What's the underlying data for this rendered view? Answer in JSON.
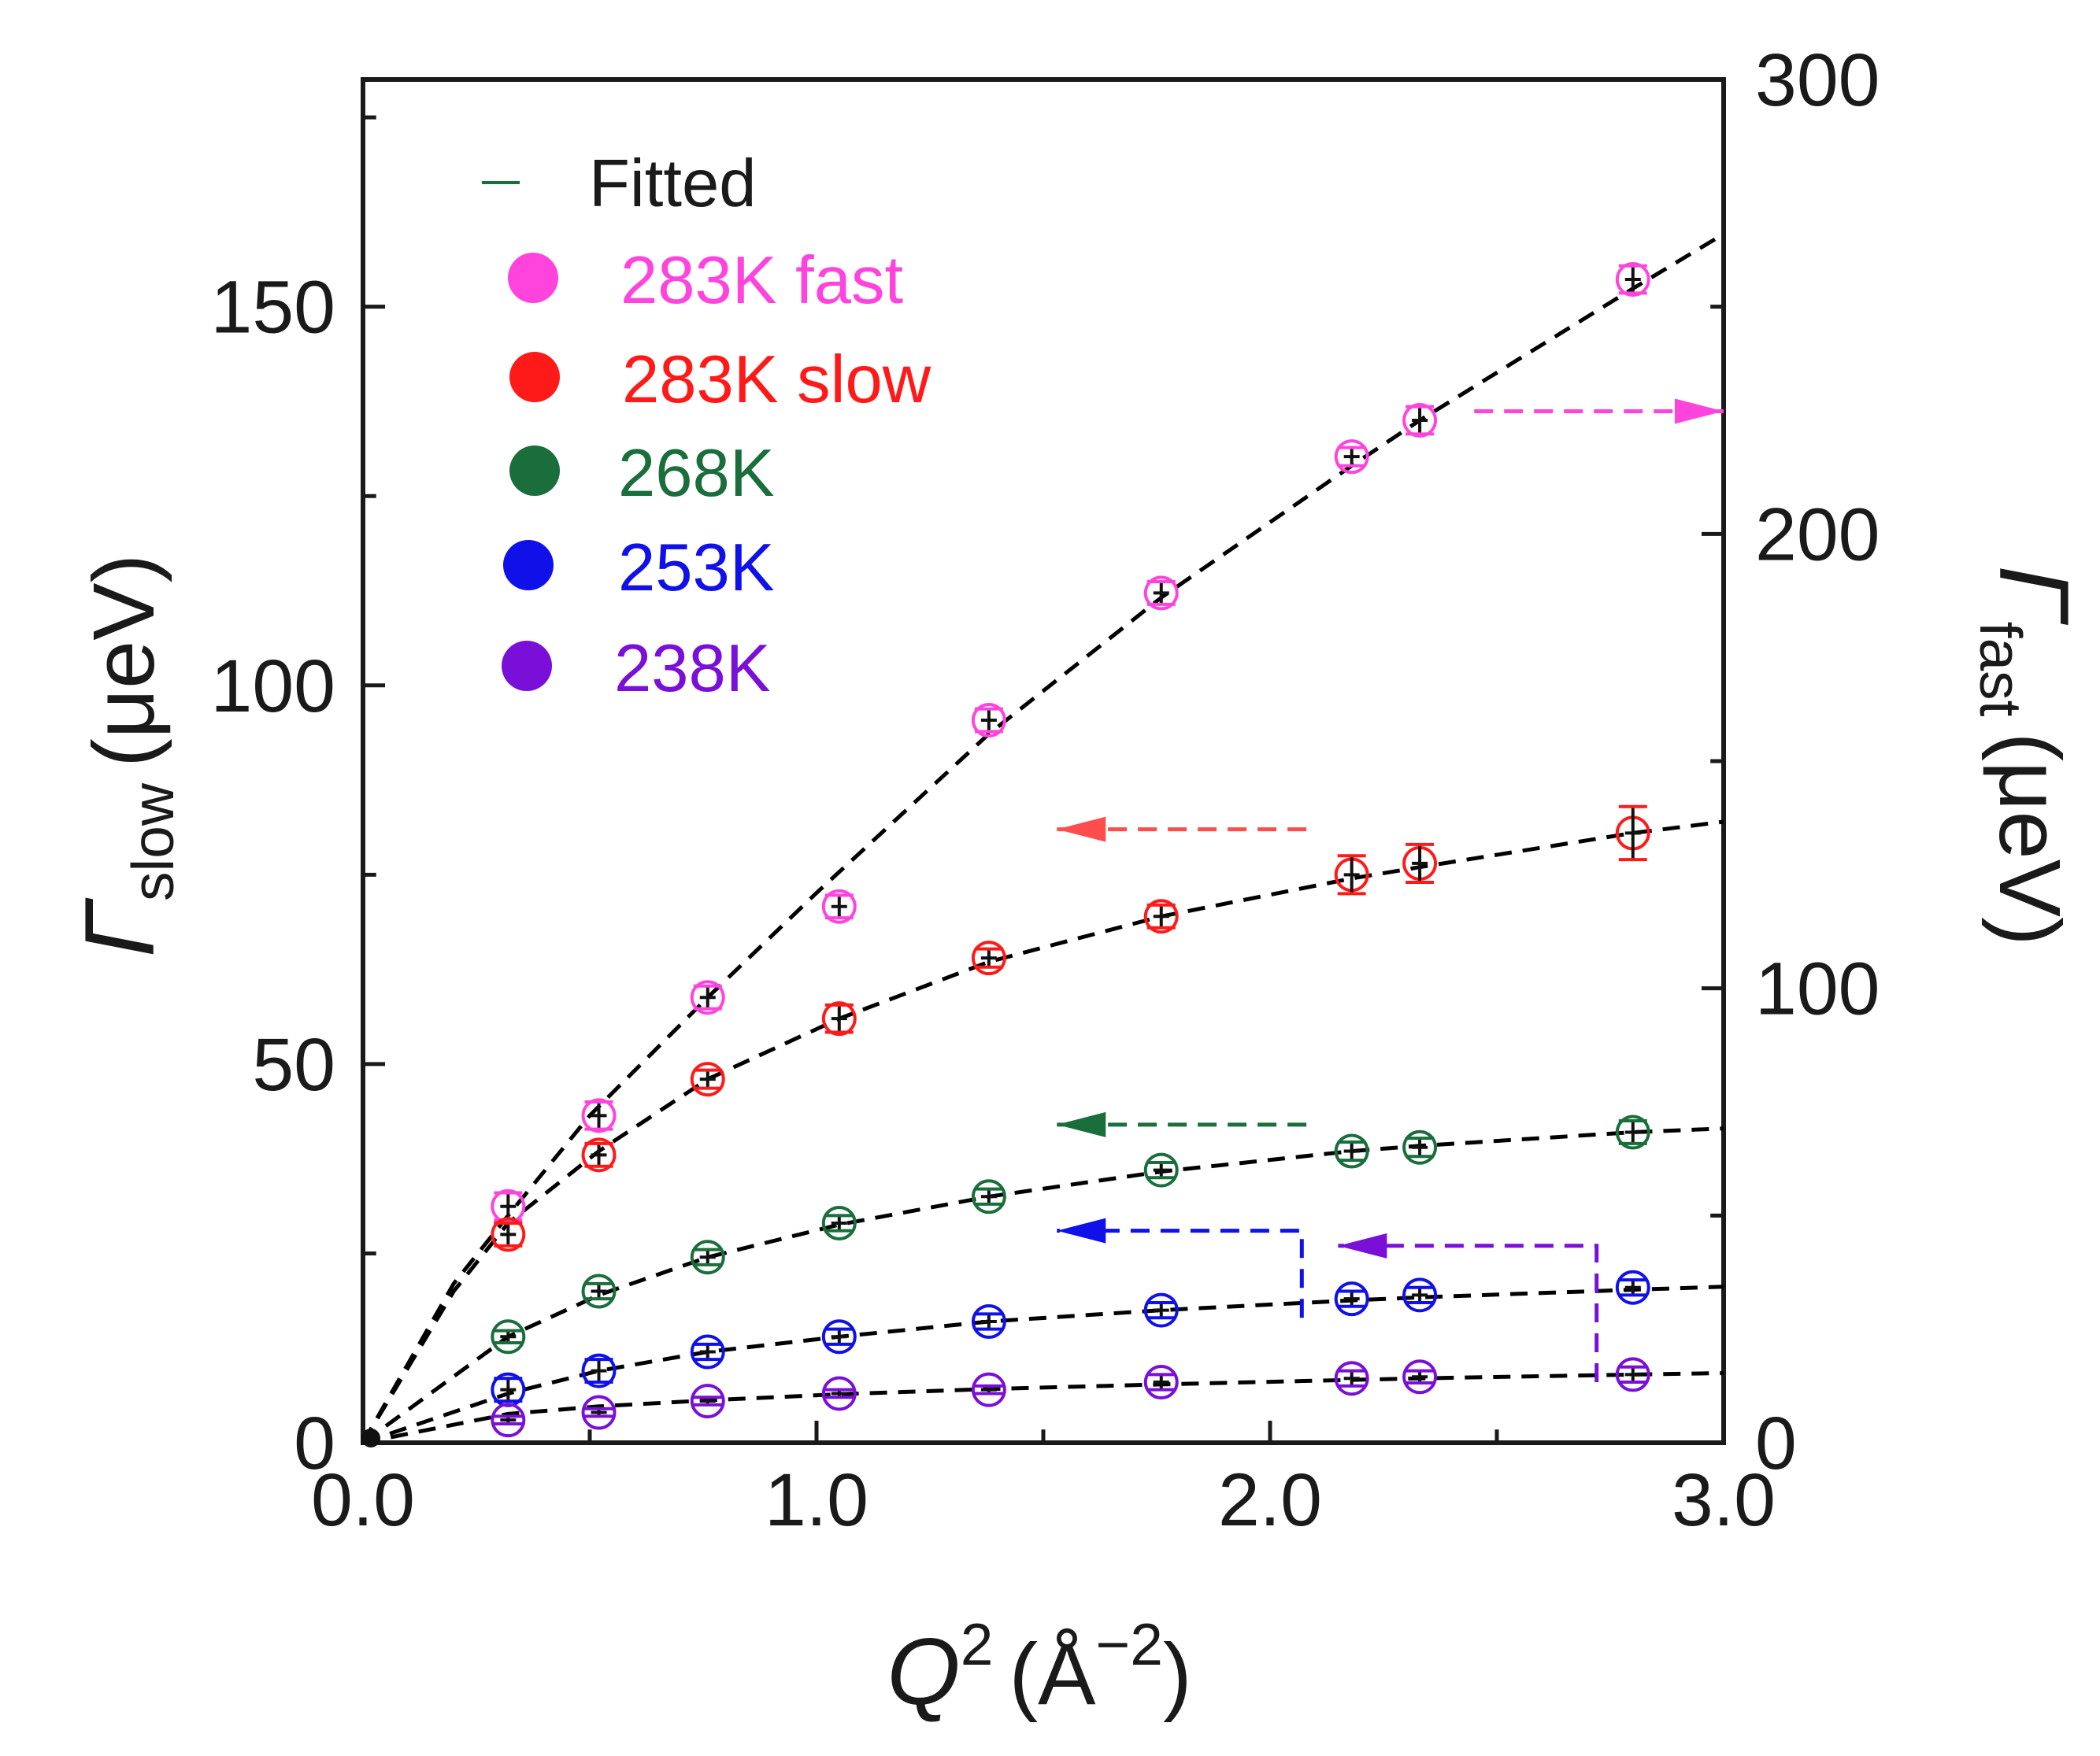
{
  "chart_data": {
    "type": "scatter",
    "title": "",
    "xlabel": {
      "symbol": "Q",
      "exponent": "2",
      "unit": "(Å",
      "unit_exponent": "−2",
      "close": ")"
    },
    "ylabel_left": {
      "symbol": "Γ",
      "subscript": "slow",
      "unit": "(μeV)"
    },
    "ylabel_right": {
      "symbol": "Γ",
      "subscript": "fast",
      "unit": "(μeV)"
    },
    "xlim": [
      0,
      3.0
    ],
    "ylim_left": [
      0,
      180
    ],
    "ylim_right": [
      0,
      300
    ],
    "x_ticks": [
      "0.0",
      "1.0",
      "2.0",
      "3.0"
    ],
    "y_ticks_left": [
      "0",
      "50",
      "100",
      "150"
    ],
    "y_ticks_right": [
      "0",
      "100",
      "200",
      "300"
    ],
    "legend": {
      "position": "top-left",
      "fitted_label": "Fitted",
      "fitted_color": "#1a6e3c",
      "entries": [
        {
          "label": "283K fast",
          "color": "#ff44dd"
        },
        {
          "label": "283K slow",
          "color": "#ff1a1a"
        },
        {
          "label": "268K",
          "color": "#1a6e3c"
        },
        {
          "label": "253K",
          "color": "#1010e8"
        },
        {
          "label": "238K",
          "color": "#7a10d8"
        }
      ]
    },
    "x": [
      0.32,
      0.52,
      0.76,
      1.05,
      1.38,
      1.76,
      2.18,
      2.33,
      2.8
    ],
    "series": [
      {
        "name": "283K fast",
        "axis": "right",
        "color": "#ff44dd",
        "values": [
          52,
          72,
          98,
          118,
          159,
          187,
          217,
          225,
          256
        ],
        "errors": [
          3,
          3,
          2.5,
          2.5,
          2.5,
          2.5,
          2,
          3,
          3
        ]
      },
      {
        "name": "283K slow",
        "axis": "left",
        "color": "#ff1a1a",
        "values": [
          27.5,
          38,
          48,
          56,
          64,
          69.5,
          75,
          76.5,
          80.5
        ],
        "errors": [
          1.5,
          1.5,
          1.2,
          1.8,
          1.2,
          1.5,
          2.5,
          2.5,
          3.5
        ]
      },
      {
        "name": "268K",
        "axis": "left",
        "color": "#1a6e3c",
        "values": [
          14,
          20,
          24.5,
          29,
          32.5,
          36,
          38.5,
          39,
          41
        ],
        "errors": [
          0.8,
          1,
          1,
          1,
          1,
          1,
          1.2,
          1.2,
          1.5
        ]
      },
      {
        "name": "253K",
        "axis": "left",
        "color": "#1010e8",
        "values": [
          7,
          9.5,
          12,
          14,
          16,
          17.5,
          19,
          19.5,
          20.5
        ],
        "errors": [
          1.5,
          1.5,
          1,
          1,
          1,
          1,
          1,
          1,
          1
        ]
      },
      {
        "name": "238K",
        "axis": "left",
        "color": "#7a10d8",
        "values": [
          3,
          4,
          5.5,
          6.5,
          7,
          8,
          8.5,
          8.7,
          9
        ],
        "errors": [
          0.5,
          0.5,
          0.5,
          0.5,
          0.5,
          1,
          1,
          0.8,
          1
        ]
      }
    ],
    "fit_curves": [
      {
        "name": "283K fast fit",
        "axis": "right",
        "color": "#000000",
        "x": [
          0,
          0.2,
          0.32,
          0.5,
          0.76,
          1.0,
          1.38,
          1.76,
          2.18,
          2.33,
          2.8,
          3.0
        ],
        "values": [
          0,
          35,
          50,
          72,
          98,
          121,
          156,
          186,
          215,
          225,
          254,
          266
        ]
      },
      {
        "name": "283K slow fit",
        "axis": "left",
        "color": "#000000",
        "x": [
          0,
          0.2,
          0.32,
          0.52,
          0.76,
          1.05,
          1.38,
          1.76,
          2.18,
          2.33,
          2.8,
          3.0
        ],
        "values": [
          0,
          20,
          29,
          38.5,
          48,
          56,
          63.5,
          69.5,
          74.5,
          76,
          80.5,
          82
        ]
      },
      {
        "name": "268K fit",
        "axis": "left",
        "color": "#000000",
        "x": [
          0,
          0.32,
          0.52,
          0.76,
          1.05,
          1.38,
          1.76,
          2.18,
          2.33,
          2.8,
          3.0
        ],
        "values": [
          0,
          14,
          19.5,
          24.5,
          28.8,
          32.5,
          35.8,
          38.5,
          39.2,
          41,
          41.5
        ]
      },
      {
        "name": "253K fit",
        "axis": "left",
        "color": "#000000",
        "x": [
          0,
          0.32,
          0.52,
          0.76,
          1.05,
          1.38,
          1.76,
          2.18,
          2.33,
          2.8,
          3.0
        ],
        "values": [
          0,
          6.5,
          9.5,
          12,
          14,
          16,
          17.5,
          18.8,
          19.2,
          20.2,
          20.6
        ]
      },
      {
        "name": "238K fit",
        "axis": "left",
        "color": "#000000",
        "x": [
          0,
          0.32,
          0.52,
          0.76,
          1.05,
          1.38,
          1.76,
          2.18,
          2.33,
          2.8,
          3.0
        ],
        "values": [
          0,
          3.8,
          4.8,
          5.6,
          6.4,
          7.1,
          7.7,
          8.3,
          8.5,
          9.0,
          9.2
        ]
      }
    ],
    "axis_indicator_arrows": [
      {
        "series": "283K fast",
        "direction": "right",
        "color": "#ff44dd",
        "path": [
          [
            2.45,
            227
          ],
          [
            3.0,
            227
          ]
        ]
      },
      {
        "series": "283K slow",
        "direction": "left",
        "color": "#ff4d4d",
        "path": [
          [
            2.08,
            81
          ],
          [
            1.53,
            81
          ]
        ]
      },
      {
        "series": "268K",
        "direction": "left",
        "color": "#1a6e3c",
        "path": [
          [
            2.08,
            42
          ],
          [
            1.53,
            42
          ]
        ]
      },
      {
        "series": "253K",
        "direction": "left",
        "color": "#1010e8",
        "path": [
          [
            2.07,
            16.5
          ],
          [
            2.07,
            28
          ],
          [
            1.53,
            28
          ]
        ]
      },
      {
        "series": "238K",
        "direction": "left",
        "color": "#7a10d8",
        "path": [
          [
            2.72,
            8
          ],
          [
            2.72,
            26
          ],
          [
            2.15,
            26
          ]
        ]
      }
    ]
  }
}
